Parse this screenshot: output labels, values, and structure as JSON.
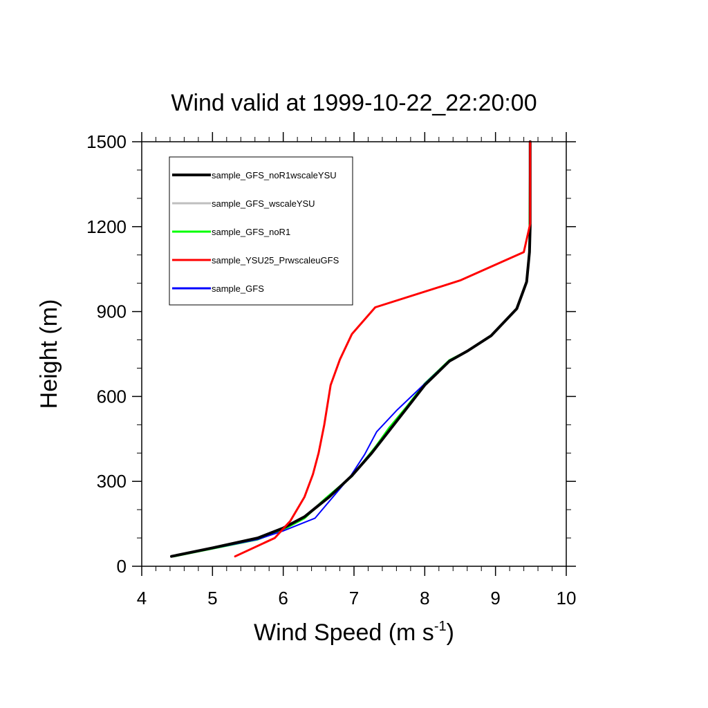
{
  "chart_data": {
    "type": "line",
    "title": "Wind valid at 1999-10-22_22:20:00",
    "xlabel": "Wind Speed (m s",
    "xlabel_sup": "-1",
    "xlabel_tail": ")",
    "ylabel": "Height (m)",
    "xlim": [
      4,
      10
    ],
    "ylim": [
      0,
      1500
    ],
    "xticks": [
      4,
      5,
      6,
      7,
      8,
      9,
      10
    ],
    "yticks": [
      0,
      300,
      600,
      900,
      1200,
      1500
    ],
    "grid": false,
    "legend_position": "top-left",
    "series": [
      {
        "name": "sample_GFS_noR1wscaleYSU",
        "color": "#000000",
        "points": [
          [
            4.42,
            35
          ],
          [
            5.0,
            65
          ],
          [
            5.64,
            100
          ],
          [
            6.0,
            135
          ],
          [
            6.3,
            175
          ],
          [
            6.65,
            245
          ],
          [
            6.97,
            320
          ],
          [
            7.25,
            400
          ],
          [
            7.5,
            480
          ],
          [
            7.75,
            560
          ],
          [
            8.0,
            640
          ],
          [
            8.35,
            725
          ],
          [
            8.6,
            760
          ],
          [
            8.94,
            815
          ],
          [
            9.3,
            910
          ],
          [
            9.44,
            1005
          ],
          [
            9.48,
            1110
          ],
          [
            9.49,
            1200
          ],
          [
            9.49,
            1300
          ],
          [
            9.49,
            1500
          ]
        ]
      },
      {
        "name": "sample_GFS_wscaleYSU",
        "color": "#bfbfbf",
        "points": [
          [
            4.45,
            35
          ],
          [
            5.64,
            95
          ],
          [
            6.0,
            130
          ],
          [
            6.25,
            165
          ],
          [
            6.6,
            240
          ],
          [
            6.97,
            318
          ],
          [
            7.25,
            405
          ],
          [
            7.5,
            485
          ],
          [
            7.75,
            560
          ],
          [
            8.0,
            640
          ],
          [
            8.35,
            725
          ],
          [
            8.6,
            760
          ],
          [
            8.94,
            815
          ],
          [
            9.3,
            910
          ],
          [
            9.44,
            1005
          ],
          [
            9.48,
            1110
          ],
          [
            9.49,
            1500
          ]
        ]
      },
      {
        "name": "sample_GFS_noR1",
        "color": "#00ff00",
        "points": [
          [
            4.45,
            35
          ],
          [
            5.64,
            95
          ],
          [
            6.0,
            130
          ],
          [
            6.3,
            170
          ],
          [
            6.6,
            240
          ],
          [
            6.97,
            318
          ],
          [
            7.3,
            420
          ],
          [
            7.5,
            490
          ],
          [
            7.75,
            565
          ],
          [
            8.0,
            645
          ],
          [
            8.35,
            728
          ],
          [
            8.6,
            760
          ],
          [
            8.94,
            815
          ],
          [
            9.3,
            910
          ],
          [
            9.44,
            1005
          ],
          [
            9.48,
            1110
          ],
          [
            9.49,
            1500
          ]
        ]
      },
      {
        "name": "sample_YSU25_PrwscaleuGFS",
        "color": "#ff0000",
        "points": [
          [
            5.32,
            35
          ],
          [
            5.88,
            100
          ],
          [
            6.1,
            160
          ],
          [
            6.3,
            245
          ],
          [
            6.42,
            325
          ],
          [
            6.5,
            400
          ],
          [
            6.58,
            500
          ],
          [
            6.67,
            640
          ],
          [
            6.8,
            730
          ],
          [
            6.97,
            820
          ],
          [
            7.3,
            915
          ],
          [
            8.5,
            1010
          ],
          [
            9.4,
            1110
          ],
          [
            9.49,
            1210
          ],
          [
            9.49,
            1500
          ]
        ]
      },
      {
        "name": "sample_GFS",
        "color": "#0000ff",
        "points": [
          [
            4.45,
            35
          ],
          [
            5.64,
            95
          ],
          [
            6.0,
            125
          ],
          [
            6.45,
            170
          ],
          [
            6.95,
            318
          ],
          [
            7.15,
            395
          ],
          [
            7.32,
            475
          ],
          [
            7.6,
            550
          ],
          [
            8.0,
            645
          ],
          [
            8.35,
            728
          ],
          [
            8.6,
            760
          ],
          [
            8.94,
            815
          ],
          [
            9.3,
            910
          ],
          [
            9.44,
            1005
          ],
          [
            9.48,
            1110
          ],
          [
            9.49,
            1500
          ]
        ]
      }
    ]
  }
}
